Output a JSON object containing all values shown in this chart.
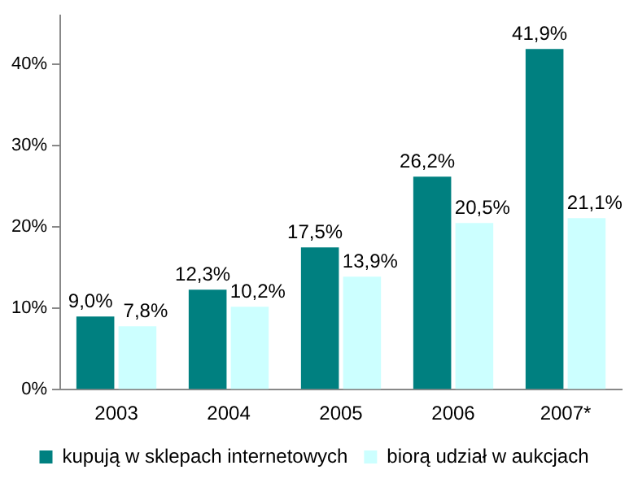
{
  "chart_data": {
    "type": "bar",
    "categories": [
      "2003",
      "2004",
      "2005",
      "2006",
      "2007*"
    ],
    "series": [
      {
        "name": "kupują w sklepach internetowych",
        "color": "#008080",
        "values": [
          9.0,
          12.3,
          17.5,
          26.2,
          41.9
        ],
        "value_labels": [
          "9,0%",
          "12,3%",
          "17,5%",
          "26,2%",
          "41,9%"
        ]
      },
      {
        "name": "biorą udział w aukcjach",
        "color": "#ccffff",
        "values": [
          7.8,
          10.2,
          13.9,
          20.5,
          21.1
        ],
        "value_labels": [
          "7,8%",
          "10,2%",
          "13,9%",
          "20,5%",
          "21,1%"
        ]
      }
    ],
    "ylim": [
      0,
      46
    ],
    "yticks": [
      {
        "value": 0,
        "label": "0%"
      },
      {
        "value": 10,
        "label": "10%"
      },
      {
        "value": 20,
        "label": "20%"
      },
      {
        "value": 30,
        "label": "30%"
      },
      {
        "value": 40,
        "label": "40%"
      }
    ],
    "grid": false,
    "legend": "bottom"
  }
}
